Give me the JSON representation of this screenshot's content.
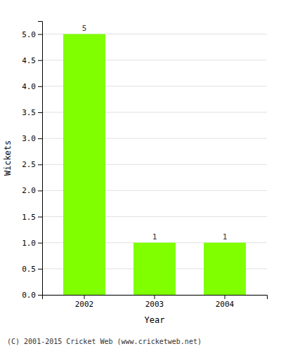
{
  "chart_data": {
    "type": "bar",
    "categories": [
      "2002",
      "2003",
      "2004"
    ],
    "values": [
      5,
      1,
      1
    ],
    "color": "#7fff00",
    "xlabel": "Year",
    "ylabel": "Wickets",
    "ylim": [
      0,
      5.25
    ],
    "yticks": [
      {
        "value": 0.0,
        "label": "0.0"
      },
      0.5,
      {
        "value": 1.0,
        "label": "1.0"
      },
      1.5,
      {
        "value": 2.0,
        "label": "2.0"
      },
      2.5,
      {
        "value": 3.0,
        "label": "3.0"
      },
      3.5,
      {
        "value": 4.0,
        "label": "4.0"
      },
      4.5,
      {
        "value": 5.0,
        "label": "5.0"
      }
    ],
    "grid": true,
    "data_labels": true,
    "annotations": [
      "(C) 2001-2015 Cricket Web (www.cricketweb.net)"
    ]
  }
}
